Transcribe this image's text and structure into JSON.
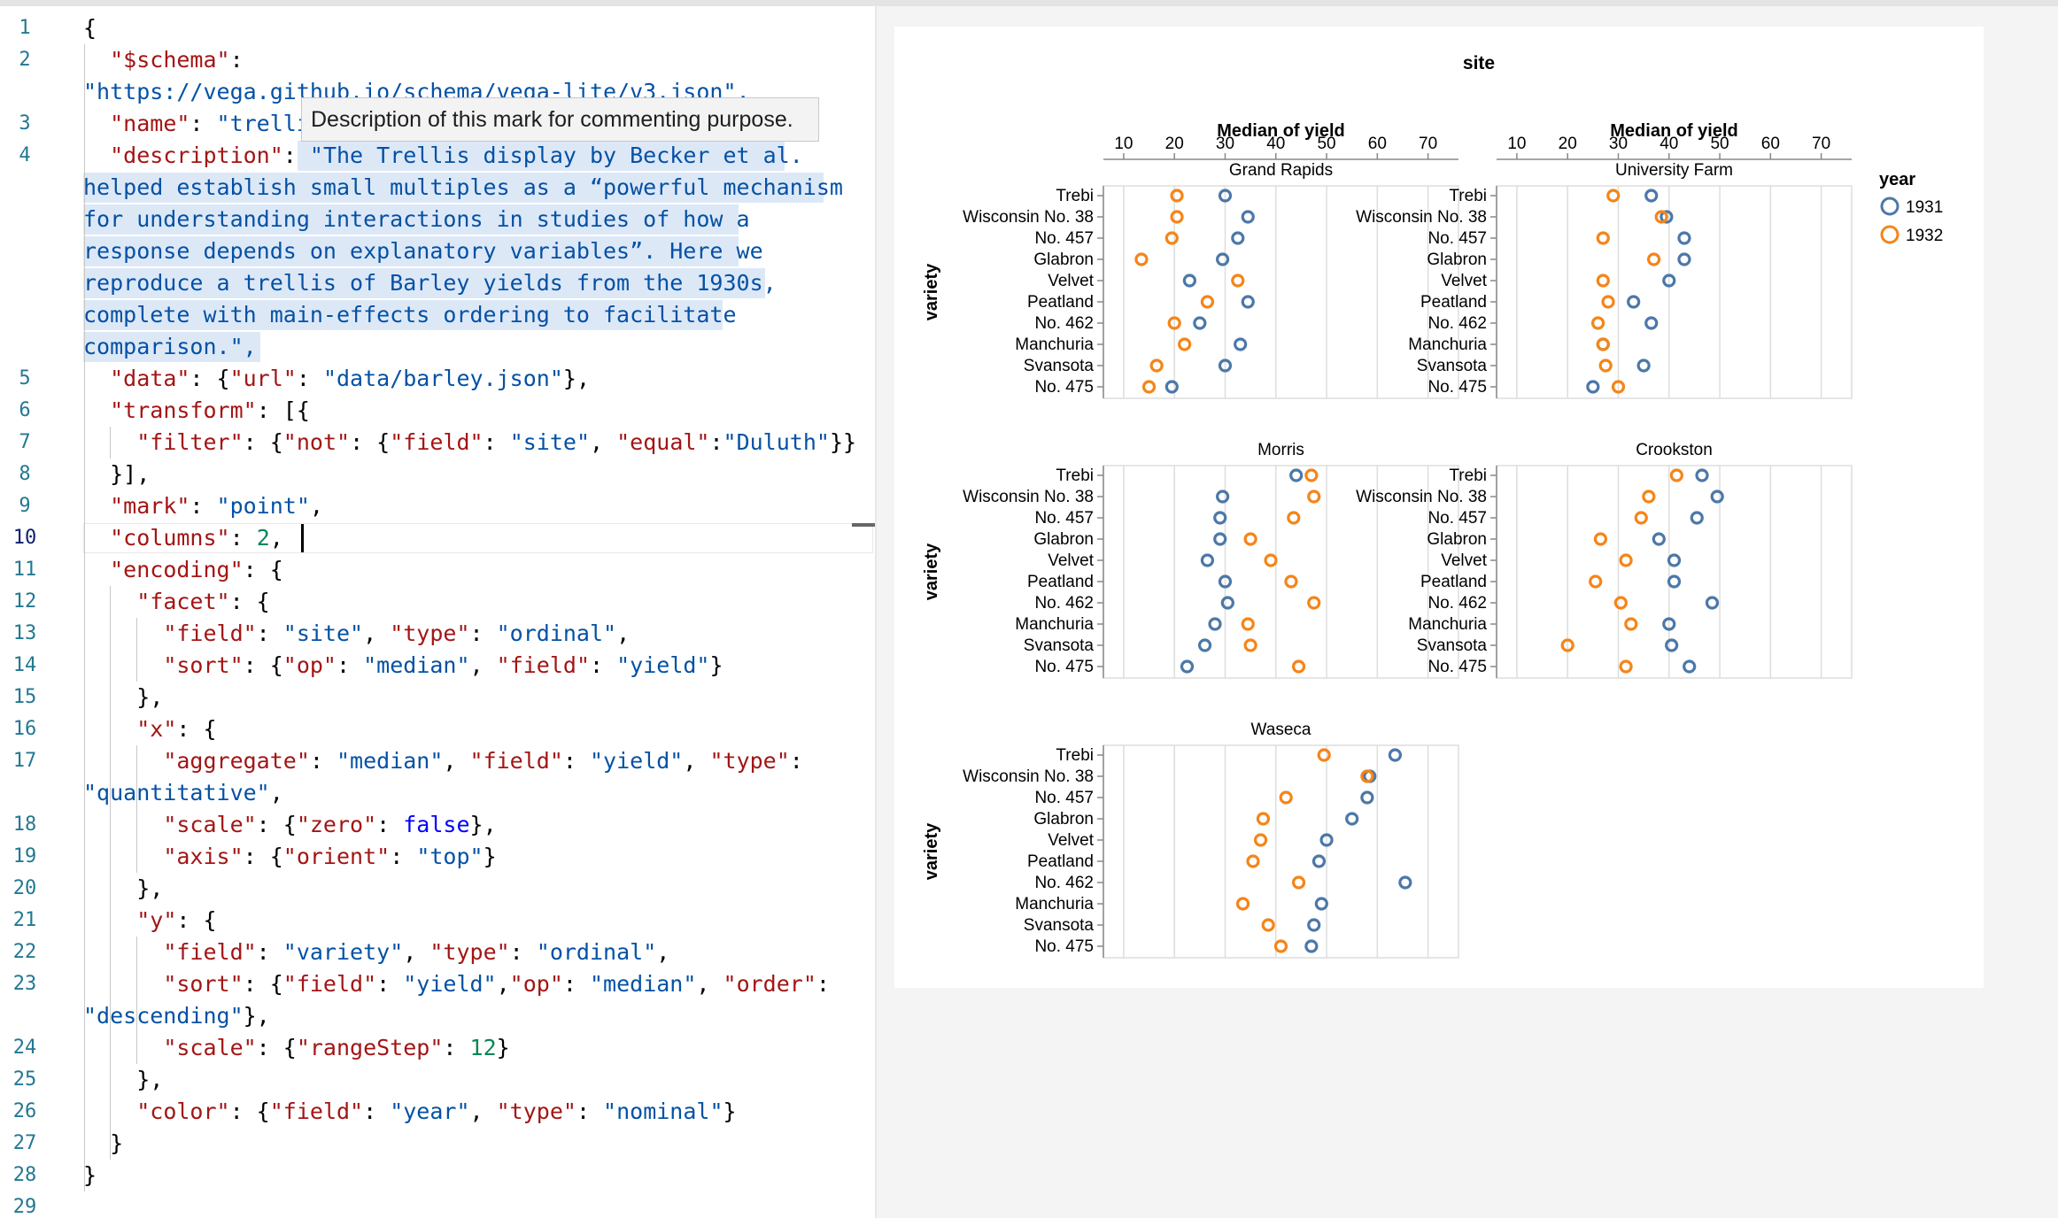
{
  "editor": {
    "line_numbers": [
      "1",
      "2",
      "3",
      "4",
      "5",
      "6",
      "7",
      "8",
      "9",
      "10",
      "11",
      "12",
      "13",
      "14",
      "15",
      "16",
      "17",
      "18",
      "19",
      "20",
      "21",
      "22",
      "23",
      "24",
      "25",
      "26",
      "27",
      "28",
      "29"
    ],
    "active_line": "10",
    "tooltip": "Description of this mark for commenting purpose.",
    "code": {
      "open_brace": "{",
      "schema_key": "\"$schema\"",
      "schema_value": "\"https://vega.github.io/schema/vega-lite/v3.json\",",
      "name_key": "\"name\"",
      "name_value": "\"trellis_barley\",",
      "desc_key": "\"description\"",
      "desc_lines": [
        "\"The Trellis display by Becker et al.",
        "helped establish small multiples as a “powerful mechanism",
        "for understanding interactions in studies of how a",
        "response depends on explanatory variables”. Here we",
        "reproduce a trellis of Barley yields from the 1930s,",
        "complete with main-effects ordering to facilitate",
        "comparison.\","
      ],
      "data_key": "\"data\"",
      "url_key": "\"url\"",
      "url_value": "\"data/barley.json\"",
      "transform_key": "\"transform\"",
      "filter_key": "\"filter\"",
      "not_key": "\"not\"",
      "field_key": "\"field\"",
      "site_value": "\"site\"",
      "equal_key": "\"equal\"",
      "duluth_value": "\"Duluth\"",
      "transform_close": "}],",
      "mark_key": "\"mark\"",
      "mark_value": "\"point\"",
      "columns_key": "\"columns\"",
      "columns_value": "2",
      "encoding_key": "\"encoding\"",
      "facet_key": "\"facet\"",
      "type_key": "\"type\"",
      "ordinal_value": "\"ordinal\"",
      "sort_key": "\"sort\"",
      "op_key": "\"op\"",
      "median_value": "\"median\"",
      "yield_value": "\"yield\"",
      "x_key": "\"x\"",
      "aggregate_key": "\"aggregate\"",
      "quantitative_value": "\"quantitative\"",
      "scale_key": "\"scale\"",
      "zero_key": "\"zero\"",
      "false_value": "false",
      "axis_key": "\"axis\"",
      "orient_key": "\"orient\"",
      "top_value": "\"top\"",
      "y_key": "\"y\"",
      "variety_value": "\"variety\"",
      "order_key": "\"order\"",
      "descending_value": "\"descending\"",
      "rangestep_key": "\"rangeStep\"",
      "rangestep_value": "12",
      "color_key": "\"color\"",
      "year_value": "\"year\"",
      "nominal_value": "\"nominal\"",
      "close_brace": "}"
    }
  },
  "chart_data": {
    "type": "scatter",
    "title": "site",
    "xlabel": "Median of yield",
    "ylabel": "variety",
    "xlim": [
      6,
      76
    ],
    "xticks": [
      10,
      20,
      30,
      40,
      50,
      60,
      70
    ],
    "legend": {
      "title": "year",
      "placement": "right",
      "entries": [
        "1931",
        "1932"
      ]
    },
    "colors": {
      "1931": "#4c78a8",
      "1932": "#f58518"
    },
    "varieties": [
      "Trebi",
      "Wisconsin No. 38",
      "No. 457",
      "Glabron",
      "Velvet",
      "Peatland",
      "No. 462",
      "Manchuria",
      "Svansota",
      "No. 475"
    ],
    "facets": [
      {
        "site": "Grand Rapids",
        "series": [
          {
            "name": "1931",
            "values": [
              30,
              34.5,
              32.5,
              29.5,
              23,
              34.5,
              25,
              33,
              30,
              19.5
            ]
          },
          {
            "name": "1932",
            "values": [
              20.5,
              20.5,
              19.5,
              13.5,
              32.5,
              26.5,
              20,
              22,
              16.5,
              15
            ]
          }
        ]
      },
      {
        "site": "University Farm",
        "series": [
          {
            "name": "1931",
            "values": [
              36.5,
              39.5,
              43,
              43,
              40,
              33,
              36.5,
              27,
              35,
              25
            ]
          },
          {
            "name": "1932",
            "values": [
              29,
              38.5,
              27,
              37,
              27,
              28,
              26,
              27,
              27.5,
              30
            ]
          }
        ]
      },
      {
        "site": "Morris",
        "series": [
          {
            "name": "1931",
            "values": [
              44,
              29.5,
              29,
              29,
              26.5,
              30,
              30.5,
              28,
              26,
              22.5
            ]
          },
          {
            "name": "1932",
            "values": [
              47,
              47.5,
              43.5,
              35,
              39,
              43,
              47.5,
              34.5,
              35,
              44.5
            ]
          }
        ]
      },
      {
        "site": "Crookston",
        "series": [
          {
            "name": "1931",
            "values": [
              46.5,
              49.5,
              45.5,
              38,
              41,
              41,
              48.5,
              40,
              40.5,
              44
            ]
          },
          {
            "name": "1932",
            "values": [
              41.5,
              36,
              34.5,
              26.5,
              31.5,
              25.5,
              30.5,
              32.5,
              20,
              31.5
            ]
          }
        ]
      },
      {
        "site": "Waseca",
        "series": [
          {
            "name": "1931",
            "values": [
              63.5,
              58.5,
              58,
              55,
              50,
              48.5,
              65.5,
              49,
              47.5,
              47
            ]
          },
          {
            "name": "1932",
            "values": [
              49.5,
              58,
              42,
              37.5,
              37,
              35.5,
              44.5,
              33.5,
              38.5,
              41
            ]
          }
        ]
      }
    ]
  }
}
